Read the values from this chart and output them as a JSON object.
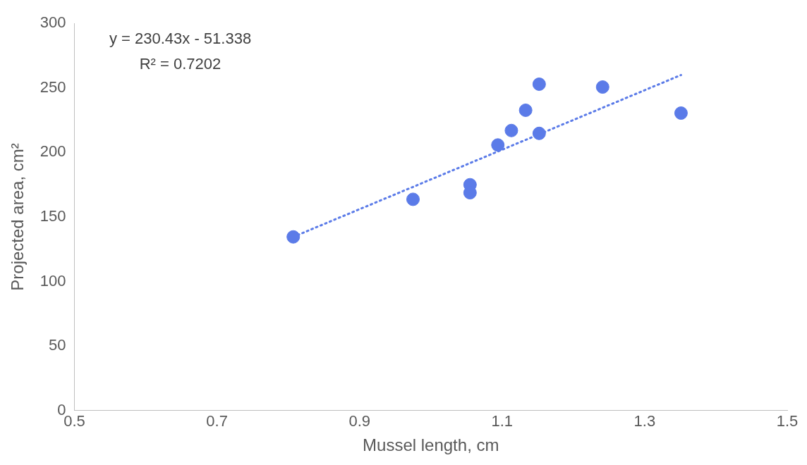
{
  "chart_data": {
    "type": "scatter",
    "xlabel": "Mussel length, cm",
    "ylabel": "Projected area, cm²",
    "x": [
      0.807,
      0.975,
      1.055,
      1.055,
      1.094,
      1.113,
      1.133,
      1.152,
      1.152,
      1.241,
      1.351
    ],
    "series": [
      {
        "color": "#5b7be8",
        "values": [
          134.6,
          163.7,
          175,
          168.8,
          205.8,
          217,
          232.7,
          252.9,
          214.8,
          250.7,
          230.5
        ],
        "marker": "circle"
      },
      {
        "type": "line",
        "color": "#5b7be8",
        "x": [
          0.807,
          1.351
        ],
        "values": [
          134.6,
          260
        ],
        "line_style": "dotted",
        "marker": "none"
      }
    ],
    "xlim": [
      0.5,
      1.5
    ],
    "xticks": [
      0.5,
      0.7,
      0.9,
      1.1,
      1.3,
      1.5
    ],
    "ylim": [
      0,
      300
    ],
    "yticks": [
      0,
      50,
      100,
      150,
      200,
      250,
      300
    ],
    "grid": false,
    "legend": false,
    "annotations": [
      "y = 230.43x - 51.338",
      "R² = 0.7202"
    ]
  }
}
